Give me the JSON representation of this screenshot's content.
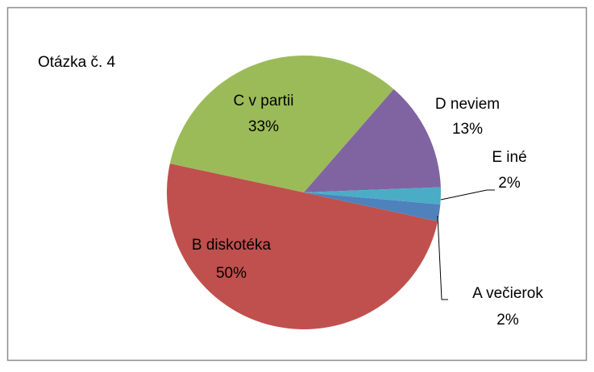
{
  "chart_data": {
    "type": "pie",
    "title": "Otázka č. 4",
    "categories": [
      "A večierok",
      "B diskotéka",
      "C v partii",
      "D neviem",
      "E iné"
    ],
    "values": [
      2,
      50,
      33,
      13,
      2
    ],
    "value_labels": [
      "2%",
      "50%",
      "33%",
      "13%",
      "2%"
    ],
    "colors": [
      "#4f81bd",
      "#c0504d",
      "#9bbb59",
      "#8064a2",
      "#4bacc6"
    ]
  }
}
